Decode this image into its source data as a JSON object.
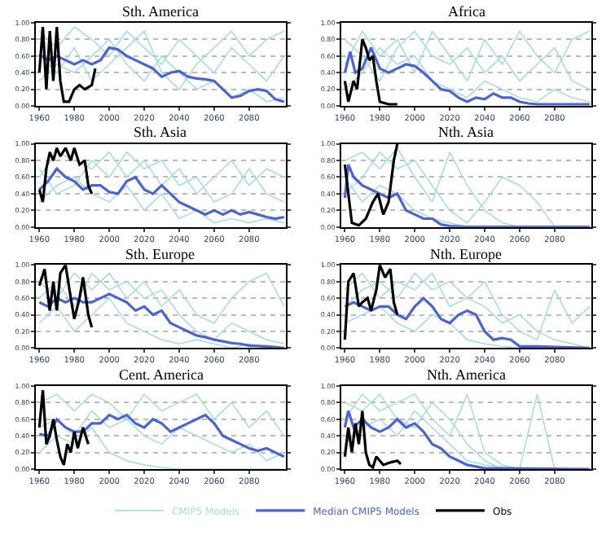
{
  "chart_data": [
    {
      "type": "line",
      "title": "Sth. America",
      "x": [
        1960,
        1970,
        1980,
        1990,
        2000,
        2010,
        2020,
        2030,
        2040,
        2050,
        2060,
        2070,
        2080,
        2090,
        2100
      ],
      "xlim": [
        1958,
        2101
      ],
      "xticks": [
        1960,
        1980,
        2000,
        2020,
        2040,
        2060,
        2080
      ],
      "ylim": [
        0,
        1
      ],
      "yticks": [
        {
          "value": 0,
          "label": "0.00"
        },
        {
          "value": 0.2,
          "label": "0.20"
        },
        {
          "value": 0.4,
          "label": "0.40"
        },
        {
          "value": 0.6,
          "label": "0.60"
        },
        {
          "value": 0.8,
          "label": "0.80"
        },
        {
          "value": 1,
          "label": "1.00"
        }
      ],
      "grid": "y",
      "marker": "none",
      "line_style": "solid",
      "series": [
        {
          "color": "#a8dede",
          "values": [
            0.9,
            0.7,
            0.95,
            0.8,
            0.6,
            0.9,
            0.7,
            0.5,
            0.8,
            0.6,
            0.4,
            0.7,
            0.5,
            0.3,
            0.6
          ]
        },
        {
          "color": "#a8dede",
          "values": [
            0.3,
            0.5,
            0.4,
            0.6,
            0.8,
            0.5,
            0.3,
            0.6,
            0.4,
            0.2,
            0.3,
            0.1,
            0.2,
            0.05,
            0.1
          ]
        },
        {
          "color": "#a8dede",
          "values": [
            0.6,
            0.4,
            0.7,
            0.3,
            0.5,
            0.7,
            0.9,
            0.4,
            0.2,
            0.5,
            0.7,
            0.9,
            0.6,
            0.8,
            0.9
          ]
        },
        {
          "color": "#4a63d8",
          "x": [
            1960,
            1965,
            1970,
            1975,
            1980,
            1985,
            1990,
            1995,
            2000,
            2005,
            2010,
            2015,
            2020,
            2025,
            2030,
            2035,
            2040,
            2045,
            2050,
            2055,
            2060,
            2065,
            2070,
            2075,
            2080,
            2085,
            2090,
            2095,
            2100
          ],
          "values": [
            0.62,
            0.55,
            0.6,
            0.55,
            0.5,
            0.55,
            0.5,
            0.55,
            0.7,
            0.68,
            0.6,
            0.55,
            0.5,
            0.45,
            0.35,
            0.4,
            0.42,
            0.35,
            0.33,
            0.32,
            0.3,
            0.2,
            0.1,
            0.12,
            0.18,
            0.2,
            0.18,
            0.08,
            0.05
          ]
        },
        {
          "color": "#000000",
          "x": [
            1960,
            1962,
            1964,
            1966,
            1968,
            1970,
            1972,
            1974,
            1977,
            1980,
            1983,
            1986,
            1990,
            1992
          ],
          "values": [
            0.4,
            0.95,
            0.2,
            0.9,
            0.3,
            0.95,
            0.3,
            0.05,
            0.05,
            0.2,
            0.25,
            0.2,
            0.25,
            0.45
          ]
        }
      ]
    },
    {
      "type": "line",
      "title": "Africa",
      "x": [
        1960,
        1970,
        1980,
        1990,
        2000,
        2010,
        2020,
        2030,
        2040,
        2050,
        2060,
        2070,
        2080,
        2090,
        2100
      ],
      "xlim": [
        1958,
        2101
      ],
      "xticks": [
        1960,
        1980,
        2000,
        2020,
        2040,
        2060,
        2080
      ],
      "ylim": [
        0,
        1
      ],
      "yticks": [
        {
          "value": 0,
          "label": "0.00"
        },
        {
          "value": 0.2,
          "label": "0.20"
        },
        {
          "value": 0.4,
          "label": "0.40"
        },
        {
          "value": 0.6,
          "label": "0.60"
        },
        {
          "value": 0.8,
          "label": "0.80"
        },
        {
          "value": 1,
          "label": "1.00"
        }
      ],
      "grid": "y",
      "marker": "none",
      "line_style": "solid",
      "series": [
        {
          "color": "#a8dede",
          "values": [
            0.5,
            0.9,
            0.6,
            0.8,
            0.4,
            0.9,
            0.6,
            0.3,
            0.8,
            0.5,
            0.9,
            0.6,
            0.4,
            0.8,
            0.9
          ]
        },
        {
          "color": "#a8dede",
          "values": [
            0.2,
            0.4,
            0.7,
            0.5,
            0.6,
            0.3,
            0.2,
            0.1,
            0.3,
            0.2,
            0.1,
            0.05,
            0.2,
            0.1,
            0.05
          ]
        },
        {
          "color": "#a8dede",
          "values": [
            0.8,
            0.6,
            0.3,
            0.7,
            0.9,
            0.6,
            0.5,
            0.7,
            0.4,
            0.6,
            0.3,
            0.5,
            0.7,
            0.3,
            0.2
          ]
        },
        {
          "color": "#4a63d8",
          "x": [
            1960,
            1963,
            1966,
            1970,
            1975,
            1980,
            1985,
            1990,
            1995,
            2000,
            2005,
            2010,
            2015,
            2020,
            2025,
            2030,
            2035,
            2040,
            2045,
            2050,
            2055,
            2060,
            2065,
            2070,
            2080,
            2100
          ],
          "values": [
            0.4,
            0.65,
            0.4,
            0.45,
            0.7,
            0.45,
            0.4,
            0.45,
            0.5,
            0.48,
            0.4,
            0.3,
            0.2,
            0.18,
            0.1,
            0.05,
            0.1,
            0.08,
            0.15,
            0.1,
            0.1,
            0.05,
            0.03,
            0.02,
            0.02,
            0.02
          ]
        },
        {
          "color": "#000000",
          "x": [
            1960,
            1962,
            1965,
            1967,
            1970,
            1972,
            1974,
            1976,
            1978,
            1980,
            1985,
            1990
          ],
          "values": [
            0.3,
            0.05,
            0.3,
            0.2,
            0.8,
            0.7,
            0.55,
            0.6,
            0.3,
            0.05,
            0.02,
            0.02
          ]
        }
      ]
    },
    {
      "type": "line",
      "title": "Sth. Asia",
      "x": [
        1960,
        1970,
        1980,
        1990,
        2000,
        2010,
        2020,
        2030,
        2040,
        2050,
        2060,
        2070,
        2080,
        2090,
        2100
      ],
      "xlim": [
        1958,
        2101
      ],
      "xticks": [
        1960,
        1980,
        2000,
        2020,
        2040,
        2060,
        2080
      ],
      "ylim": [
        0,
        1
      ],
      "yticks": [
        {
          "value": 0,
          "label": "0.00"
        },
        {
          "value": 0.2,
          "label": "0.20"
        },
        {
          "value": 0.4,
          "label": "0.40"
        },
        {
          "value": 0.6,
          "label": "0.60"
        },
        {
          "value": 0.8,
          "label": "0.80"
        },
        {
          "value": 1,
          "label": "1.00"
        }
      ],
      "grid": "y",
      "marker": "none",
      "line_style": "solid",
      "series": [
        {
          "color": "#a8dede",
          "values": [
            0.6,
            0.9,
            0.8,
            0.7,
            0.9,
            0.6,
            0.8,
            0.5,
            0.7,
            0.4,
            0.6,
            0.8,
            0.5,
            0.7,
            0.6
          ]
        },
        {
          "color": "#a8dede",
          "values": [
            0.3,
            0.5,
            0.6,
            0.4,
            0.3,
            0.5,
            0.2,
            0.4,
            0.1,
            0.2,
            0.05,
            0.1,
            0.05,
            0.1,
            0.05
          ]
        },
        {
          "color": "#a8dede",
          "values": [
            0.7,
            0.4,
            0.5,
            0.8,
            0.6,
            0.9,
            0.7,
            0.8,
            0.5,
            0.6,
            0.3,
            0.4,
            0.7,
            0.4,
            0.3
          ]
        },
        {
          "color": "#4a63d8",
          "x": [
            1960,
            1965,
            1970,
            1975,
            1980,
            1985,
            1990,
            1995,
            2000,
            2005,
            2010,
            2015,
            2020,
            2025,
            2030,
            2035,
            2040,
            2045,
            2050,
            2055,
            2060,
            2065,
            2070,
            2075,
            2080,
            2085,
            2090,
            2095,
            2100
          ],
          "values": [
            0.45,
            0.55,
            0.7,
            0.6,
            0.55,
            0.45,
            0.5,
            0.5,
            0.42,
            0.4,
            0.55,
            0.6,
            0.45,
            0.4,
            0.5,
            0.4,
            0.3,
            0.25,
            0.2,
            0.15,
            0.2,
            0.15,
            0.2,
            0.15,
            0.18,
            0.15,
            0.12,
            0.1,
            0.12
          ]
        },
        {
          "color": "#000000",
          "x": [
            1960,
            1962,
            1964,
            1966,
            1968,
            1970,
            1972,
            1975,
            1978,
            1980,
            1983,
            1986,
            1988,
            1990
          ],
          "values": [
            0.45,
            0.3,
            0.7,
            0.9,
            0.8,
            0.95,
            0.85,
            0.95,
            0.8,
            0.95,
            0.75,
            0.8,
            0.5,
            0.4
          ]
        }
      ]
    },
    {
      "type": "line",
      "title": "Nth. Asia",
      "x": [
        1960,
        1970,
        1980,
        1990,
        2000,
        2010,
        2020,
        2030,
        2040,
        2050,
        2060,
        2070,
        2080,
        2090,
        2100
      ],
      "xlim": [
        1958,
        2101
      ],
      "xticks": [
        1960,
        1980,
        2000,
        2020,
        2040,
        2060,
        2080
      ],
      "ylim": [
        0,
        1
      ],
      "yticks": [
        {
          "value": 0,
          "label": "0.00"
        },
        {
          "value": 0.2,
          "label": "0.20"
        },
        {
          "value": 0.4,
          "label": "0.40"
        },
        {
          "value": 0.6,
          "label": "0.60"
        },
        {
          "value": 0.8,
          "label": "0.80"
        },
        {
          "value": 1,
          "label": "1.00"
        }
      ],
      "grid": "y",
      "marker": "none",
      "line_style": "solid",
      "series": [
        {
          "color": "#a8dede",
          "values": [
            0.8,
            0.9,
            0.7,
            0.95,
            0.6,
            0.3,
            0.9,
            0.5,
            0.2,
            0.05,
            0.0,
            0.0,
            0.0,
            0.0,
            0.0
          ]
        },
        {
          "color": "#a8dede",
          "values": [
            0.4,
            0.6,
            0.9,
            0.7,
            0.8,
            0.5,
            0.2,
            0.05,
            0.3,
            0.6,
            0.5,
            0.3,
            0.0,
            0.0,
            0.0
          ]
        },
        {
          "color": "#a8dede",
          "values": [
            0.6,
            0.3,
            0.5,
            0.4,
            0.2,
            0.1,
            0.05,
            0.0,
            0.0,
            0.0,
            0.0,
            0.0,
            0.0,
            0.0,
            0.0
          ]
        },
        {
          "color": "#4a63d8",
          "x": [
            1960,
            1962,
            1965,
            1970,
            1975,
            1980,
            1985,
            1990,
            1995,
            2000,
            2005,
            2010,
            2015,
            2020,
            2030,
            2100
          ],
          "values": [
            0.35,
            0.75,
            0.6,
            0.5,
            0.45,
            0.4,
            0.35,
            0.4,
            0.2,
            0.15,
            0.1,
            0.1,
            0.03,
            0.01,
            0.0,
            0.0
          ]
        },
        {
          "color": "#000000",
          "x": [
            1960,
            1962,
            1964,
            1968,
            1972,
            1976,
            1979,
            1982,
            1985,
            1988,
            1990
          ],
          "values": [
            0.75,
            0.4,
            0.05,
            0.02,
            0.1,
            0.3,
            0.4,
            0.15,
            0.3,
            0.8,
            1.0
          ]
        }
      ]
    },
    {
      "type": "line",
      "title": "Sth. Europe",
      "x": [
        1960,
        1970,
        1980,
        1990,
        2000,
        2010,
        2020,
        2030,
        2040,
        2050,
        2060,
        2070,
        2080,
        2090,
        2100
      ],
      "xlim": [
        1958,
        2101
      ],
      "xticks": [
        1960,
        1980,
        2000,
        2020,
        2040,
        2060,
        2080
      ],
      "ylim": [
        0,
        1
      ],
      "yticks": [
        {
          "value": 0,
          "label": "0.00"
        },
        {
          "value": 0.2,
          "label": "0.20"
        },
        {
          "value": 0.4,
          "label": "0.40"
        },
        {
          "value": 0.6,
          "label": "0.60"
        },
        {
          "value": 0.8,
          "label": "0.80"
        },
        {
          "value": 1,
          "label": "1.00"
        }
      ],
      "grid": "y",
      "marker": "none",
      "line_style": "solid",
      "series": [
        {
          "color": "#a8dede",
          "values": [
            0.8,
            0.6,
            0.9,
            0.7,
            0.9,
            0.6,
            0.8,
            0.5,
            0.7,
            0.4,
            0.3,
            0.6,
            0.8,
            0.9,
            0.5
          ]
        },
        {
          "color": "#a8dede",
          "values": [
            0.3,
            0.5,
            0.2,
            0.4,
            0.6,
            0.3,
            0.2,
            0.1,
            0.05,
            0.1,
            0.05,
            0.0,
            0.05,
            0.0,
            0.0
          ]
        },
        {
          "color": "#a8dede",
          "values": [
            0.6,
            0.8,
            0.5,
            0.9,
            0.7,
            0.8,
            0.6,
            0.7,
            0.4,
            0.2,
            0.1,
            0.3,
            0.2,
            0.1,
            0.05
          ]
        },
        {
          "color": "#4a63d8",
          "x": [
            1960,
            1965,
            1970,
            1975,
            1980,
            1985,
            1990,
            1995,
            2000,
            2005,
            2010,
            2015,
            2020,
            2025,
            2030,
            2035,
            2040,
            2045,
            2050,
            2055,
            2060,
            2065,
            2070,
            2075,
            2080,
            2090,
            2100
          ],
          "values": [
            0.55,
            0.5,
            0.6,
            0.55,
            0.6,
            0.55,
            0.55,
            0.6,
            0.65,
            0.6,
            0.55,
            0.45,
            0.5,
            0.4,
            0.45,
            0.3,
            0.25,
            0.2,
            0.15,
            0.13,
            0.1,
            0.08,
            0.06,
            0.05,
            0.03,
            0.02,
            0.0
          ]
        },
        {
          "color": "#000000",
          "x": [
            1960,
            1963,
            1966,
            1968,
            1970,
            1972,
            1975,
            1978,
            1980,
            1983,
            1985,
            1988,
            1990
          ],
          "values": [
            0.75,
            0.95,
            0.45,
            0.8,
            0.45,
            0.9,
            1.0,
            0.6,
            0.35,
            0.6,
            0.85,
            0.4,
            0.25
          ]
        }
      ]
    },
    {
      "type": "line",
      "title": "Nth. Europe",
      "x": [
        1960,
        1970,
        1980,
        1990,
        2000,
        2010,
        2020,
        2030,
        2040,
        2050,
        2060,
        2070,
        2080,
        2090,
        2100
      ],
      "xlim": [
        1958,
        2101
      ],
      "xticks": [
        1960,
        1980,
        2000,
        2020,
        2040,
        2060,
        2080
      ],
      "ylim": [
        0,
        1
      ],
      "yticks": [
        {
          "value": 0,
          "label": "0.00"
        },
        {
          "value": 0.2,
          "label": "0.20"
        },
        {
          "value": 0.4,
          "label": "0.40"
        },
        {
          "value": 0.6,
          "label": "0.60"
        },
        {
          "value": 0.8,
          "label": "0.80"
        },
        {
          "value": 1,
          "label": "1.00"
        }
      ],
      "grid": "y",
      "marker": "none",
      "line_style": "solid",
      "series": [
        {
          "color": "#a8dede",
          "values": [
            0.7,
            0.9,
            0.6,
            0.8,
            0.7,
            0.9,
            0.5,
            0.6,
            0.8,
            0.4,
            0.2,
            0.1,
            0.7,
            0.3,
            0.5
          ]
        },
        {
          "color": "#a8dede",
          "values": [
            0.3,
            0.4,
            0.5,
            0.3,
            0.2,
            0.4,
            0.3,
            0.1,
            0.05,
            0.02,
            0.0,
            0.0,
            0.0,
            0.0,
            0.0
          ]
        },
        {
          "color": "#a8dede",
          "values": [
            0.5,
            0.7,
            0.8,
            0.6,
            0.9,
            0.7,
            0.8,
            0.6,
            0.5,
            0.3,
            0.4,
            0.2,
            0.1,
            0.05,
            0.0
          ]
        },
        {
          "color": "#4a63d8",
          "x": [
            1960,
            1965,
            1970,
            1975,
            1980,
            1985,
            1990,
            1995,
            2000,
            2005,
            2010,
            2015,
            2020,
            2025,
            2030,
            2035,
            2040,
            2045,
            2050,
            2055,
            2060,
            2070,
            2100
          ],
          "values": [
            0.5,
            0.55,
            0.5,
            0.45,
            0.5,
            0.5,
            0.4,
            0.35,
            0.5,
            0.6,
            0.5,
            0.35,
            0.3,
            0.4,
            0.45,
            0.4,
            0.2,
            0.1,
            0.12,
            0.1,
            0.02,
            0.02,
            0.0
          ]
        },
        {
          "color": "#000000",
          "x": [
            1960,
            1962,
            1965,
            1968,
            1970,
            1973,
            1975,
            1978,
            1980,
            1983,
            1986,
            1988,
            1990
          ],
          "values": [
            0.1,
            0.8,
            0.9,
            0.5,
            0.55,
            0.6,
            0.45,
            0.7,
            1.0,
            0.85,
            0.95,
            0.55,
            0.4
          ]
        }
      ]
    },
    {
      "type": "line",
      "title": "Cent. America",
      "x": [
        1960,
        1970,
        1980,
        1990,
        2000,
        2010,
        2020,
        2030,
        2040,
        2050,
        2060,
        2070,
        2080,
        2090,
        2100
      ],
      "xlim": [
        1958,
        2101
      ],
      "xticks": [
        1960,
        1980,
        2000,
        2020,
        2040,
        2060,
        2080
      ],
      "ylim": [
        0,
        1
      ],
      "yticks": [
        {
          "value": 0,
          "label": "0.00"
        },
        {
          "value": 0.2,
          "label": "0.20"
        },
        {
          "value": 0.4,
          "label": "0.40"
        },
        {
          "value": 0.6,
          "label": "0.60"
        },
        {
          "value": 0.8,
          "label": "0.80"
        },
        {
          "value": 1,
          "label": "1.00"
        }
      ],
      "grid": "y",
      "marker": "none",
      "line_style": "solid",
      "series": [
        {
          "color": "#a8dede",
          "values": [
            0.8,
            0.9,
            0.7,
            0.9,
            0.8,
            0.6,
            0.9,
            0.7,
            0.8,
            0.9,
            0.6,
            0.8,
            0.5,
            0.7,
            0.4
          ]
        },
        {
          "color": "#a8dede",
          "values": [
            0.2,
            0.4,
            0.3,
            0.5,
            0.2,
            0.1,
            0.05,
            0.02,
            0.0,
            0.0,
            0.0,
            0.0,
            0.0,
            0.0,
            0.0
          ]
        },
        {
          "color": "#a8dede",
          "values": [
            0.5,
            0.6,
            0.4,
            0.7,
            0.5,
            0.6,
            0.4,
            0.3,
            0.5,
            0.4,
            0.3,
            0.2,
            0.3,
            0.1,
            0.2
          ]
        },
        {
          "color": "#4a63d8",
          "x": [
            1960,
            1965,
            1970,
            1975,
            1980,
            1985,
            1990,
            1995,
            2000,
            2005,
            2010,
            2015,
            2020,
            2025,
            2030,
            2035,
            2040,
            2045,
            2050,
            2055,
            2060,
            2065,
            2070,
            2075,
            2080,
            2085,
            2090,
            2095,
            2100
          ],
          "values": [
            0.42,
            0.4,
            0.6,
            0.5,
            0.45,
            0.45,
            0.55,
            0.55,
            0.65,
            0.6,
            0.65,
            0.55,
            0.5,
            0.6,
            0.55,
            0.45,
            0.5,
            0.55,
            0.6,
            0.65,
            0.55,
            0.4,
            0.35,
            0.3,
            0.25,
            0.22,
            0.25,
            0.2,
            0.15
          ]
        },
        {
          "color": "#000000",
          "x": [
            1960,
            1962,
            1964,
            1966,
            1968,
            1970,
            1972,
            1974,
            1976,
            1978,
            1980,
            1982,
            1985,
            1988
          ],
          "values": [
            0.5,
            0.95,
            0.3,
            0.4,
            0.6,
            0.35,
            0.15,
            0.05,
            0.3,
            0.2,
            0.45,
            0.25,
            0.5,
            0.3
          ]
        }
      ]
    },
    {
      "type": "line",
      "title": "Nth. America",
      "x": [
        1960,
        1970,
        1980,
        1990,
        2000,
        2010,
        2020,
        2030,
        2040,
        2050,
        2060,
        2070,
        2080,
        2090,
        2100
      ],
      "xlim": [
        1958,
        2101
      ],
      "xticks": [
        1960,
        1980,
        2000,
        2020,
        2040,
        2060,
        2080
      ],
      "ylim": [
        0,
        1
      ],
      "yticks": [
        {
          "value": 0,
          "label": "0.00"
        },
        {
          "value": 0.2,
          "label": "0.20"
        },
        {
          "value": 0.4,
          "label": "0.40"
        },
        {
          "value": 0.6,
          "label": "0.60"
        },
        {
          "value": 0.8,
          "label": "0.80"
        },
        {
          "value": 1,
          "label": "1.00"
        }
      ],
      "grid": "y",
      "legend": "bottom",
      "marker": "none",
      "line_style": "solid",
      "series": [
        {
          "name": "CMIP5 Models",
          "color": "#a8dede",
          "values": [
            0.6,
            0.9,
            0.7,
            0.8,
            0.9,
            0.6,
            0.4,
            0.9,
            0.2,
            0.05,
            0.0,
            0.0,
            0.0,
            0.0,
            0.0
          ]
        },
        {
          "color": "#a8dede",
          "values": [
            0.3,
            0.5,
            0.6,
            0.4,
            0.7,
            0.5,
            0.3,
            0.1,
            0.05,
            0.02,
            0.0,
            0.9,
            0.0,
            0.0,
            0.0
          ]
        },
        {
          "color": "#a8dede",
          "values": [
            0.8,
            0.7,
            0.9,
            0.6,
            0.5,
            0.8,
            0.6,
            0.3,
            0.1,
            0.0,
            0.0,
            0.0,
            0.0,
            0.0,
            0.0
          ]
        },
        {
          "name": "Median CMIP5 Models",
          "color": "#4a63d8",
          "x": [
            1960,
            1962,
            1965,
            1970,
            1975,
            1980,
            1985,
            1990,
            1995,
            2000,
            2005,
            2010,
            2015,
            2020,
            2025,
            2030,
            2035,
            2040,
            2050,
            2100
          ],
          "values": [
            0.5,
            0.7,
            0.5,
            0.6,
            0.5,
            0.45,
            0.5,
            0.6,
            0.5,
            0.55,
            0.45,
            0.3,
            0.25,
            0.15,
            0.1,
            0.05,
            0.03,
            0.01,
            0.01,
            0.0
          ]
        },
        {
          "name": "Obs",
          "color": "#000000",
          "x": [
            1960,
            1962,
            1964,
            1966,
            1968,
            1970,
            1972,
            1974,
            1976,
            1978,
            1982,
            1986,
            1990,
            1992
          ],
          "values": [
            0.15,
            0.5,
            0.2,
            0.55,
            0.3,
            0.7,
            0.2,
            0.05,
            0.02,
            0.15,
            0.05,
            0.08,
            0.1,
            0.06
          ]
        }
      ]
    }
  ]
}
